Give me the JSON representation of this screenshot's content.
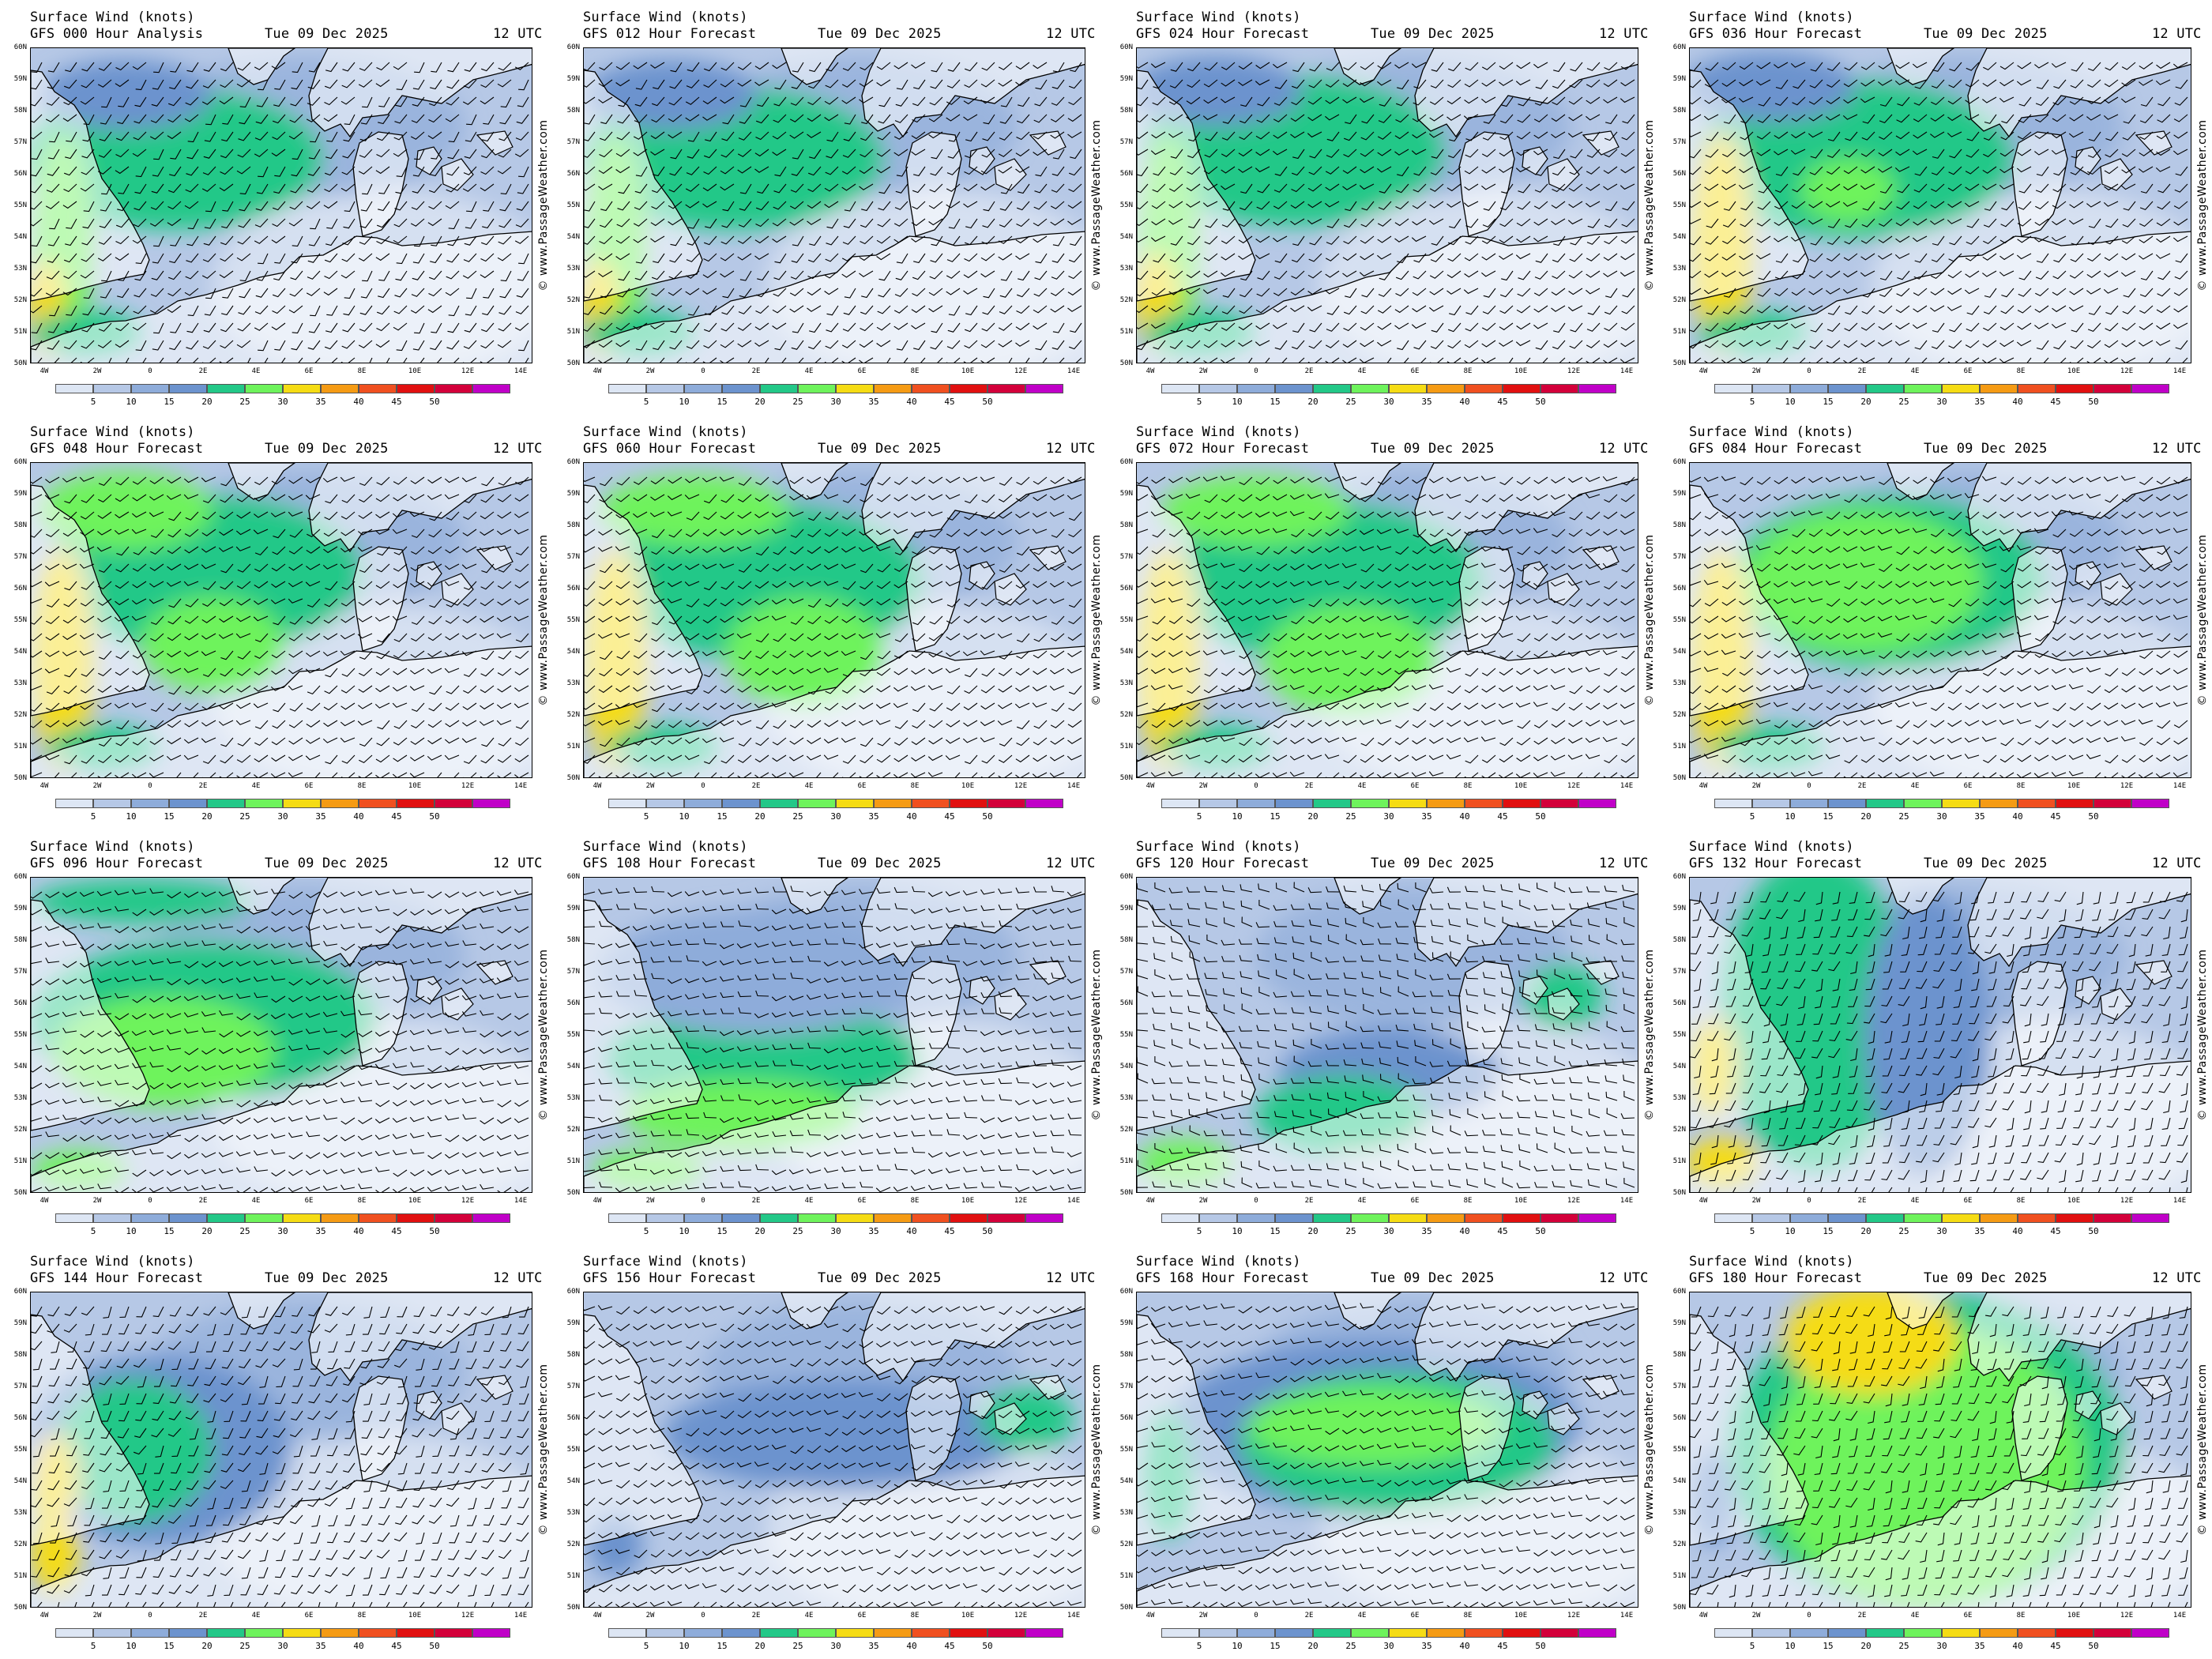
{
  "title_line1": "Surface Wind (knots)",
  "run_date": "Tue 09 Dec 2025",
  "run_time": "12 UTC",
  "credit": "© www.PassageWeather.com",
  "lat_labels": [
    "60N",
    "59N",
    "58N",
    "57N",
    "56N",
    "55N",
    "54N",
    "53N",
    "52N",
    "51N",
    "50N"
  ],
  "lon_labels": [
    "4W",
    "2W",
    "0",
    "2E",
    "4E",
    "6E",
    "8E",
    "10E",
    "12E",
    "14E"
  ],
  "legend": {
    "values": [
      "5",
      "10",
      "15",
      "20",
      "25",
      "30",
      "35",
      "40",
      "45",
      "50"
    ],
    "colors": [
      "#dde6f4",
      "#b6c8e6",
      "#8eacda",
      "#6c93ce",
      "#23c888",
      "#6ef35c",
      "#f5dc14",
      "#f59b14",
      "#f05020",
      "#e11010",
      "#d3003a",
      "#c000c8"
    ]
  },
  "map_colors": {
    "land": "#ffffff",
    "coast": "#000000",
    "barb": "#000000"
  },
  "panels": [
    {
      "label": "GFS 000 Hour Analysis"
    },
    {
      "label": "GFS 012 Hour Forecast"
    },
    {
      "label": "GFS 024 Hour Forecast"
    },
    {
      "label": "GFS 036 Hour Forecast"
    },
    {
      "label": "GFS 048 Hour Forecast"
    },
    {
      "label": "GFS 060 Hour Forecast"
    },
    {
      "label": "GFS 072 Hour Forecast"
    },
    {
      "label": "GFS 084 Hour Forecast"
    },
    {
      "label": "GFS 096 Hour Forecast"
    },
    {
      "label": "GFS 108 Hour Forecast"
    },
    {
      "label": "GFS 120 Hour Forecast"
    },
    {
      "label": "GFS 132 Hour Forecast"
    },
    {
      "label": "GFS 144 Hour Forecast"
    },
    {
      "label": "GFS 156 Hour Forecast"
    },
    {
      "label": "GFS 168 Hour Forecast"
    },
    {
      "label": "GFS 180 Hour Forecast"
    }
  ]
}
